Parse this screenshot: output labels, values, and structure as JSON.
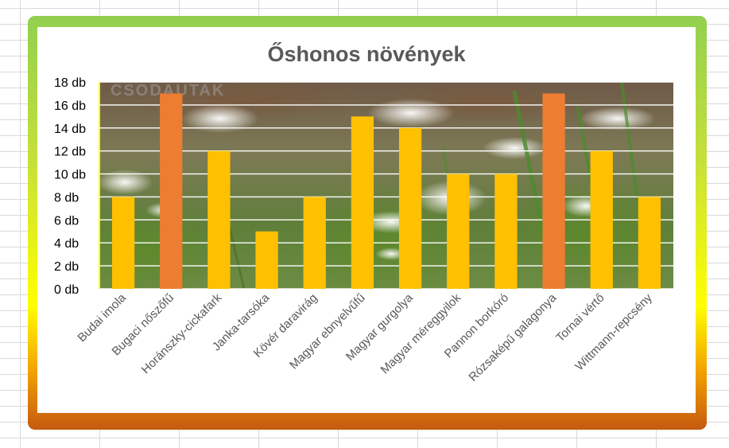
{
  "chart_data": {
    "type": "bar",
    "title": "Őshonos növények",
    "categories": [
      "Budai imola",
      "Bugaci nőszőfű",
      "Horánszky-cickafark",
      "Janka-tarsóka",
      "Kövér daravirág",
      "Magyar ebnyelvűfű",
      "Magyar gurgolya",
      "Magyar méreggyilok",
      "Pannon borkóró",
      "Rózsaképű galagonya",
      "Tornai vértő",
      "Wittmann-repcsény"
    ],
    "values": [
      8,
      17,
      12,
      5,
      8,
      15,
      14,
      10,
      10,
      17,
      12,
      8
    ],
    "bar_colors": [
      "#ffc000",
      "#ed7d31",
      "#ffc000",
      "#ffc000",
      "#ffc000",
      "#ffc000",
      "#ffc000",
      "#ffc000",
      "#ffc000",
      "#ed7d31",
      "#ffc000",
      "#ffc000"
    ],
    "ylim": [
      0,
      18
    ],
    "yticks": [
      0,
      2,
      4,
      6,
      8,
      10,
      12,
      14,
      16,
      18
    ],
    "ytick_labels": [
      "0 db",
      "2 db",
      "4 db",
      "6 db",
      "8 db",
      "10 db",
      "12 db",
      "14 db",
      "16 db",
      "18 db"
    ],
    "grid": true,
    "watermark": "CSODAUTAK",
    "xlabel": "",
    "ylabel": ""
  },
  "colors": {
    "frame_top": "#92d050",
    "frame_mid": "#ffff00",
    "frame_bottom": "#c55a11",
    "bar_default": "#ffc000",
    "bar_highlight": "#ed7d31",
    "gridline": "#ffffff",
    "axis": "#ffff00"
  }
}
